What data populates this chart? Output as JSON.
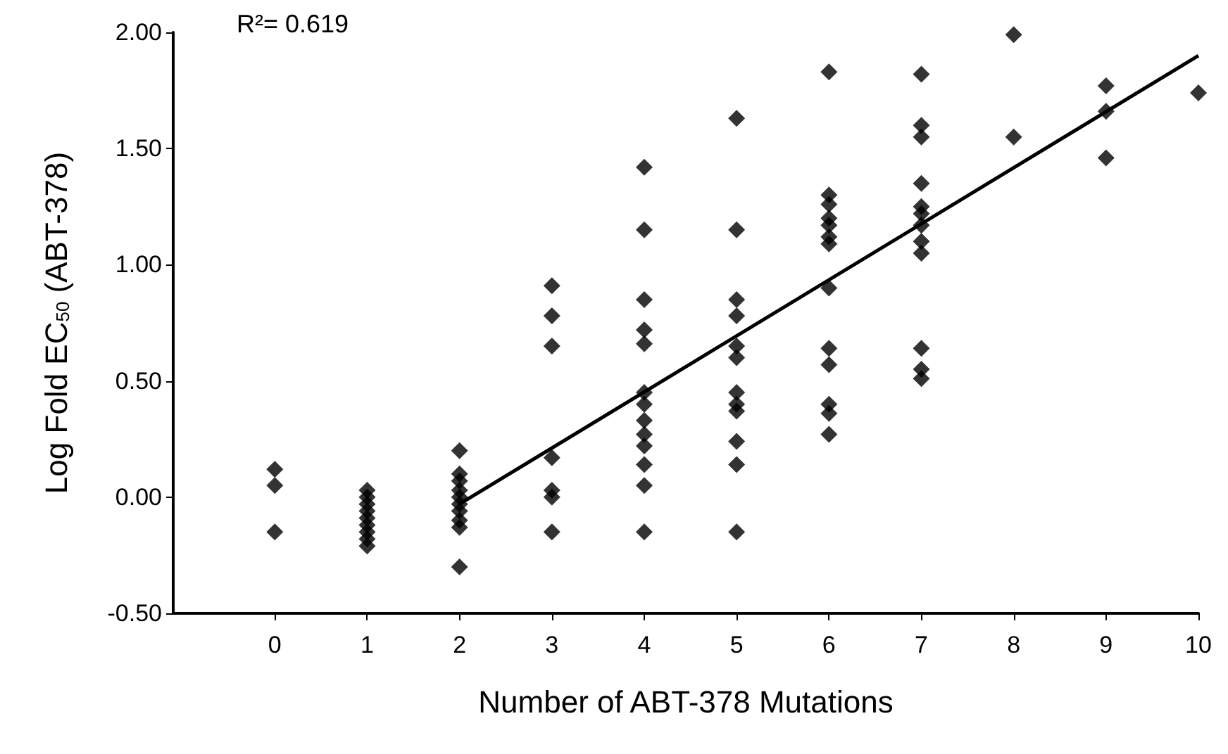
{
  "chart_data": {
    "type": "scatter",
    "xlabel": "Number of ABT-378 Mutations",
    "ylabel": "Log Fold EC$_{50}$ (ABT-378)",
    "annotations": [
      "R²= 0.619"
    ],
    "xlim": [
      -1.1,
      10
    ],
    "xticks": [
      0,
      1,
      2,
      3,
      4,
      5,
      6,
      7,
      8,
      9,
      10
    ],
    "ylim": [
      -0.5,
      2
    ],
    "yticks": [
      {
        "value": -0.5,
        "label": "-0.50"
      },
      {
        "value": 0,
        "label": "0.00"
      },
      {
        "value": 0.5,
        "label": "0.50"
      },
      {
        "value": 1,
        "label": "1.00"
      },
      {
        "value": 1.5,
        "label": "1.50"
      },
      {
        "value": 2,
        "label": "2.00"
      }
    ],
    "grid": false,
    "marker": "diamond",
    "series": [
      {
        "color": "#000000",
        "x": [
          0,
          0,
          0,
          1,
          1,
          1,
          1,
          1,
          1,
          1,
          1,
          1,
          2,
          2,
          2,
          2,
          2,
          2,
          2,
          2,
          2,
          2,
          3,
          3,
          3,
          3,
          3,
          3,
          3,
          4,
          4,
          4,
          4,
          4,
          4,
          4,
          4,
          4,
          4,
          4,
          4,
          4,
          5,
          5,
          5,
          5,
          5,
          5,
          5,
          5,
          5,
          5,
          5,
          5,
          6,
          6,
          6,
          6,
          6,
          6,
          6,
          6,
          6,
          6,
          6,
          6,
          6,
          7,
          7,
          7,
          7,
          7,
          7,
          7,
          7,
          7,
          7,
          7,
          7,
          8,
          8,
          9,
          9,
          9,
          10
        ],
        "values": [
          0.12,
          0.05,
          -0.15,
          0.03,
          0,
          -0.03,
          -0.06,
          -0.09,
          -0.12,
          -0.15,
          -0.18,
          -0.21,
          0.2,
          0.1,
          0.07,
          0.03,
          0,
          -0.03,
          -0.06,
          -0.1,
          -0.13,
          -0.3,
          0.91,
          0.78,
          0.65,
          0.17,
          0.03,
          0,
          -0.15,
          1.42,
          1.15,
          0.85,
          0.72,
          0.66,
          0.45,
          0.4,
          0.33,
          0.27,
          0.22,
          0.14,
          0.05,
          -0.15,
          1.63,
          1.15,
          0.85,
          0.78,
          0.65,
          0.6,
          0.45,
          0.4,
          0.37,
          0.24,
          0.14,
          -0.15,
          1.83,
          1.3,
          1.26,
          1.2,
          1.17,
          1.12,
          1.09,
          0.9,
          0.64,
          0.57,
          0.4,
          0.36,
          0.27,
          1.82,
          1.6,
          1.55,
          1.35,
          1.25,
          1.22,
          1.17,
          1.1,
          1.05,
          0.64,
          0.55,
          0.51,
          1.99,
          1.55,
          1.77,
          1.66,
          1.46,
          1.74
        ]
      },
      {
        "type": "line",
        "color": "#000000",
        "marker": "none",
        "line_style": "solid",
        "x": [
          2,
          10
        ],
        "values": [
          -0.03,
          1.9
        ]
      }
    ]
  }
}
